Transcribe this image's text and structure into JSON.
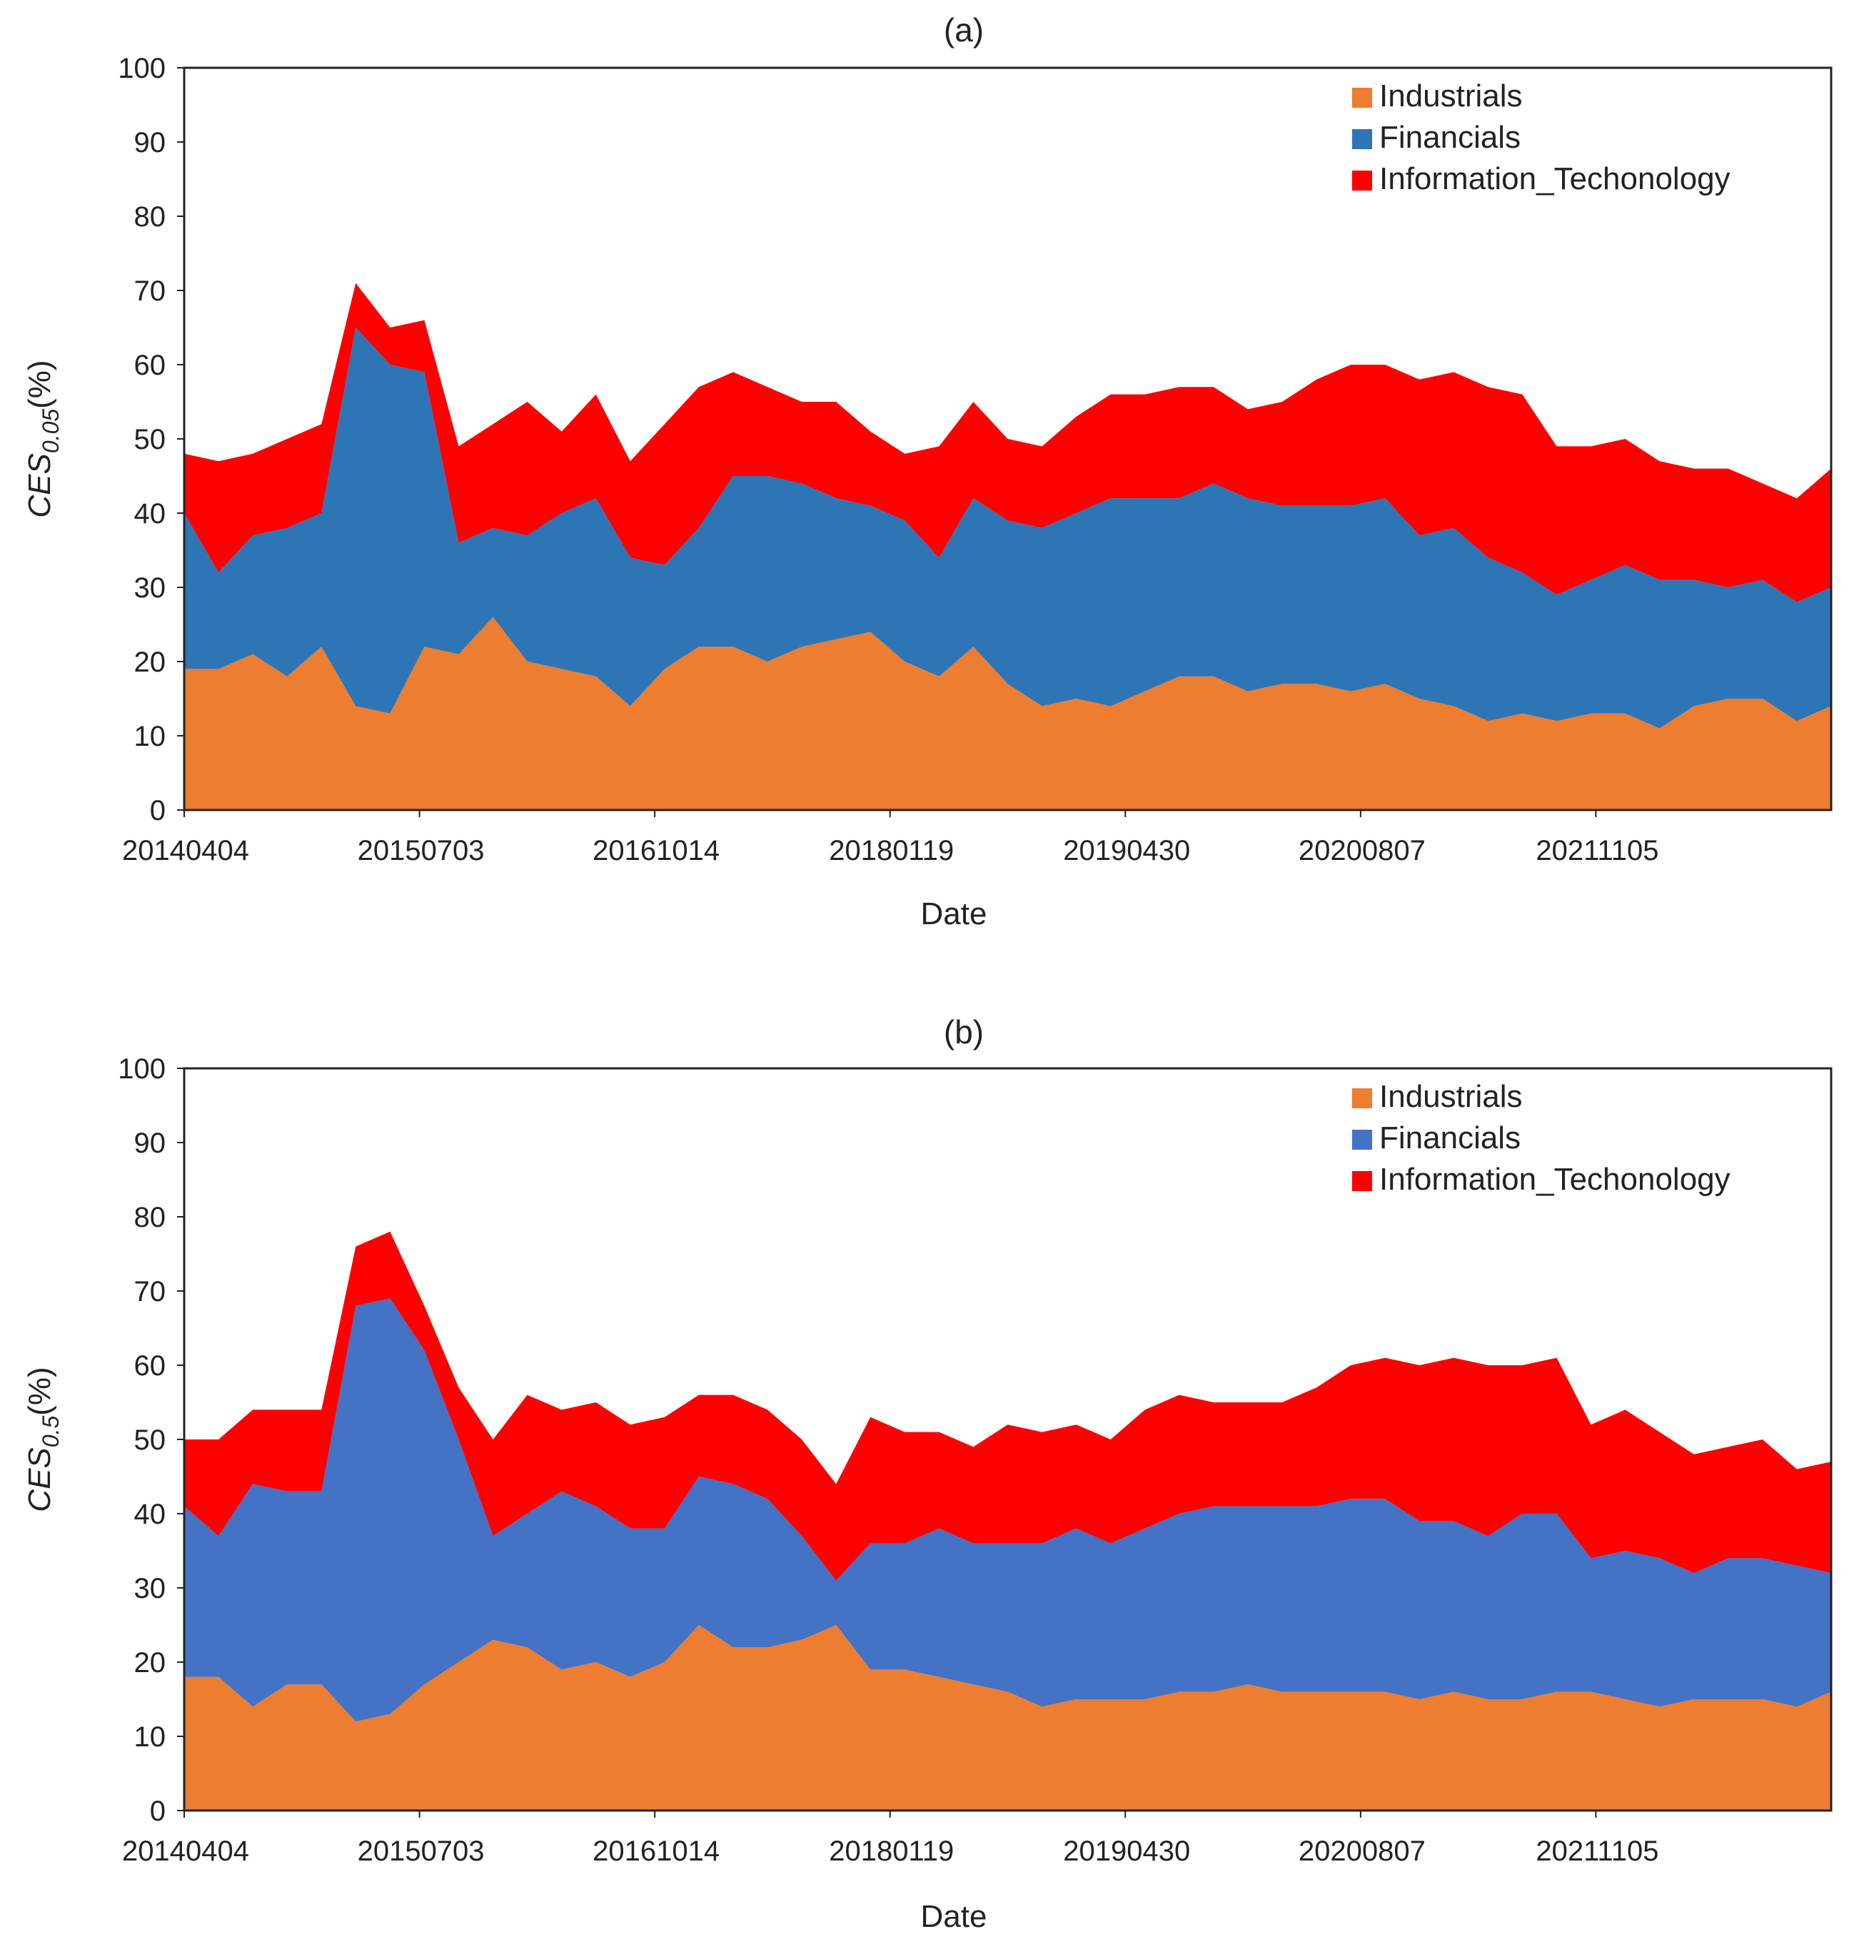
{
  "chart_data": [
    {
      "type": "area",
      "stacked": true,
      "title": "(a)",
      "xlabel": "Date",
      "ylabel": {
        "main": "CES",
        "sub": "0.05",
        "unit": "(%)"
      },
      "ylim": [
        0,
        100
      ],
      "yticks": [
        0,
        10,
        20,
        30,
        40,
        50,
        60,
        70,
        80,
        90,
        100
      ],
      "xtick_labels": [
        "20140404",
        "20150703",
        "20161014",
        "20180119",
        "20190430",
        "20200807",
        "20211105"
      ],
      "grid": false,
      "legend": "top-right",
      "x": [
        "2014-04",
        "2014-06",
        "2014-08",
        "2014-10",
        "2014-12",
        "2015-02",
        "2015-04",
        "2015-06",
        "2015-08",
        "2015-10",
        "2015-12",
        "2016-02",
        "2016-04",
        "2016-06",
        "2016-08",
        "2016-10",
        "2016-12",
        "2017-02",
        "2017-04",
        "2017-06",
        "2017-08",
        "2017-10",
        "2017-12",
        "2018-02",
        "2018-04",
        "2018-06",
        "2018-08",
        "2018-10",
        "2018-12",
        "2019-02",
        "2019-04",
        "2019-06",
        "2019-08",
        "2019-10",
        "2019-12",
        "2020-02",
        "2020-04",
        "2020-06",
        "2020-08",
        "2020-10",
        "2020-12",
        "2021-02",
        "2021-04",
        "2021-06",
        "2021-08",
        "2021-10",
        "2021-12",
        "2022-02",
        "2022-04"
      ],
      "series": [
        {
          "name": "Industrials",
          "color": "#ED7D31",
          "values": [
            19,
            19,
            21,
            18,
            22,
            14,
            13,
            22,
            21,
            26,
            20,
            19,
            18,
            14,
            19,
            22,
            22,
            20,
            22,
            23,
            24,
            20,
            18,
            22,
            17,
            14,
            15,
            14,
            16,
            18,
            18,
            16,
            17,
            17,
            16,
            17,
            15,
            14,
            12,
            13,
            12,
            13,
            13,
            11,
            14,
            15,
            15,
            12,
            14
          ]
        },
        {
          "name": "Financials",
          "color": "#2E75B6",
          "values": [
            21,
            13,
            16,
            20,
            18,
            51,
            47,
            37,
            15,
            12,
            17,
            21,
            24,
            20,
            14,
            16,
            23,
            25,
            22,
            19,
            17,
            19,
            16,
            20,
            22,
            24,
            25,
            28,
            26,
            24,
            26,
            26,
            24,
            24,
            25,
            25,
            22,
            24,
            22,
            19,
            17,
            18,
            20,
            20,
            17,
            15,
            16,
            16,
            16
          ]
        },
        {
          "name": "Information_Techonology",
          "color": "#FF0000",
          "values": [
            8,
            15,
            11,
            12,
            12,
            6,
            5,
            7,
            13,
            14,
            18,
            11,
            14,
            13,
            19,
            19,
            14,
            12,
            11,
            13,
            10,
            9,
            15,
            13,
            11,
            11,
            13,
            14,
            14,
            15,
            13,
            12,
            14,
            17,
            19,
            18,
            21,
            21,
            23,
            24,
            20,
            18,
            17,
            16,
            15,
            16,
            13,
            14,
            16
          ]
        }
      ]
    },
    {
      "type": "area",
      "stacked": true,
      "title": "(b)",
      "xlabel": "Date",
      "ylabel": {
        "main": "CES",
        "sub": "0.5",
        "unit": "(%)"
      },
      "ylim": [
        0,
        100
      ],
      "yticks": [
        0,
        10,
        20,
        30,
        40,
        50,
        60,
        70,
        80,
        90,
        100
      ],
      "xtick_labels": [
        "20140404",
        "20150703",
        "20161014",
        "20180119",
        "20190430",
        "20200807",
        "20211105"
      ],
      "grid": false,
      "legend": "top-right",
      "x": [
        "2014-04",
        "2014-06",
        "2014-08",
        "2014-10",
        "2014-12",
        "2015-02",
        "2015-04",
        "2015-06",
        "2015-08",
        "2015-10",
        "2015-12",
        "2016-02",
        "2016-04",
        "2016-06",
        "2016-08",
        "2016-10",
        "2016-12",
        "2017-02",
        "2017-04",
        "2017-06",
        "2017-08",
        "2017-10",
        "2017-12",
        "2018-02",
        "2018-04",
        "2018-06",
        "2018-08",
        "2018-10",
        "2018-12",
        "2019-02",
        "2019-04",
        "2019-06",
        "2019-08",
        "2019-10",
        "2019-12",
        "2020-02",
        "2020-04",
        "2020-06",
        "2020-08",
        "2020-10",
        "2020-12",
        "2021-02",
        "2021-04",
        "2021-06",
        "2021-08",
        "2021-10",
        "2021-12",
        "2022-02",
        "2022-04"
      ],
      "series": [
        {
          "name": "Industrials",
          "color": "#ED7D31",
          "values": [
            18,
            18,
            14,
            17,
            17,
            12,
            13,
            17,
            20,
            23,
            22,
            19,
            20,
            18,
            20,
            25,
            22,
            22,
            23,
            25,
            19,
            19,
            18,
            17,
            16,
            14,
            15,
            15,
            15,
            16,
            16,
            17,
            16,
            16,
            16,
            16,
            15,
            16,
            15,
            15,
            16,
            16,
            15,
            14,
            15,
            15,
            15,
            14,
            16
          ]
        },
        {
          "name": "Financials",
          "color": "#4472C4",
          "values": [
            23,
            19,
            30,
            26,
            26,
            56,
            56,
            45,
            30,
            14,
            18,
            24,
            21,
            20,
            18,
            20,
            22,
            20,
            14,
            6,
            17,
            17,
            20,
            19,
            20,
            22,
            23,
            21,
            23,
            24,
            25,
            24,
            25,
            25,
            26,
            26,
            24,
            23,
            22,
            25,
            24,
            18,
            20,
            20,
            17,
            19,
            19,
            19,
            16
          ]
        },
        {
          "name": "Information_Techonology",
          "color": "#FF0000",
          "values": [
            9,
            13,
            10,
            11,
            11,
            8,
            9,
            6,
            7,
            13,
            16,
            11,
            14,
            14,
            15,
            11,
            12,
            12,
            13,
            13,
            17,
            15,
            13,
            13,
            16,
            15,
            14,
            14,
            16,
            16,
            14,
            14,
            14,
            16,
            18,
            19,
            21,
            22,
            23,
            20,
            21,
            18,
            19,
            17,
            16,
            15,
            16,
            13,
            15
          ]
        }
      ]
    }
  ]
}
